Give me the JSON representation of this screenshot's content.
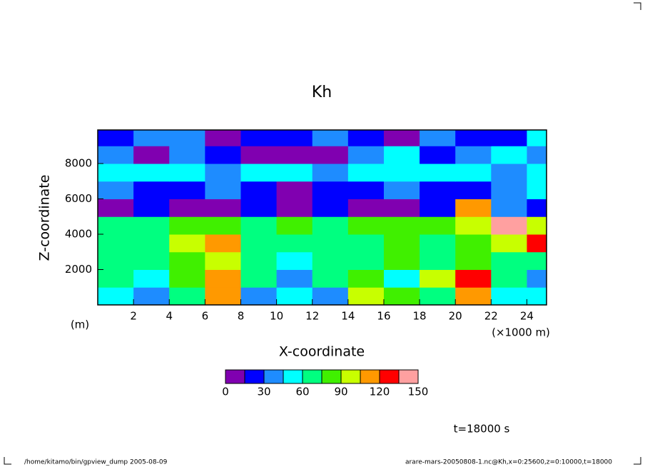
{
  "chart_data": {
    "type": "contour",
    "title": "Kh",
    "x_label": "X-coordinate",
    "y_label": "Z-coordinate",
    "y_unit": "(m)",
    "x_unit": "(×1000 m)",
    "time_label": "t=18000 s",
    "footer_left": "/home/kitamo/bin/gpview_dump  2005-08-09",
    "footer_right": "arare-mars-20050808-1.nc@Kh,x=0:25600,z=0:10000,t=18000",
    "x": [
      1,
      3,
      5,
      7,
      9,
      11,
      13,
      15,
      17,
      19,
      21,
      23,
      25
    ],
    "z": [
      500,
      1500,
      2500,
      3500,
      4500,
      5500,
      6500,
      7500,
      8500,
      9500
    ],
    "values": [
      [
        50,
        35,
        70,
        110,
        35,
        50,
        40,
        90,
        80,
        65,
        110,
        50,
        45
      ],
      [
        60,
        45,
        80,
        115,
        70,
        40,
        60,
        80,
        55,
        90,
        120,
        65,
        40
      ],
      [
        65,
        60,
        75,
        90,
        65,
        55,
        70,
        60,
        80,
        70,
        85,
        65,
        60
      ],
      [
        70,
        65,
        90,
        110,
        60,
        70,
        60,
        65,
        75,
        70,
        80,
        90,
        120
      ],
      [
        65,
        70,
        75,
        80,
        70,
        75,
        70,
        85,
        80,
        80,
        90,
        140,
        100
      ],
      [
        10,
        20,
        10,
        10,
        20,
        10,
        15,
        10,
        10,
        20,
        110,
        30,
        20
      ],
      [
        35,
        15,
        25,
        40,
        20,
        10,
        20,
        15,
        30,
        25,
        20,
        35,
        50
      ],
      [
        50,
        45,
        55,
        40,
        50,
        45,
        35,
        50,
        55,
        45,
        50,
        40,
        55
      ],
      [
        40,
        10,
        35,
        15,
        10,
        5,
        10,
        30,
        45,
        20,
        40,
        50,
        35
      ],
      [
        25,
        40,
        30,
        10,
        20,
        15,
        35,
        20,
        10,
        30,
        25,
        20,
        45
      ]
    ],
    "xlim": [
      0,
      25.1
    ],
    "ylim": [
      0,
      9900
    ],
    "xticks": [
      2,
      4,
      6,
      8,
      10,
      12,
      14,
      16,
      18,
      20,
      22,
      24
    ],
    "yticks": [
      2000,
      4000,
      6000,
      8000
    ],
    "levels": [
      0,
      15,
      30,
      45,
      60,
      75,
      90,
      105,
      120,
      135,
      150
    ],
    "colors": [
      "#8000b0",
      "#0000ff",
      "#1e8cff",
      "#00ffff",
      "#00ff80",
      "#40f000",
      "#c8ff00",
      "#ff9900",
      "#ff0000",
      "#ffa0a0"
    ],
    "colorbar_ticks": [
      0,
      30,
      60,
      90,
      120,
      150
    ]
  }
}
